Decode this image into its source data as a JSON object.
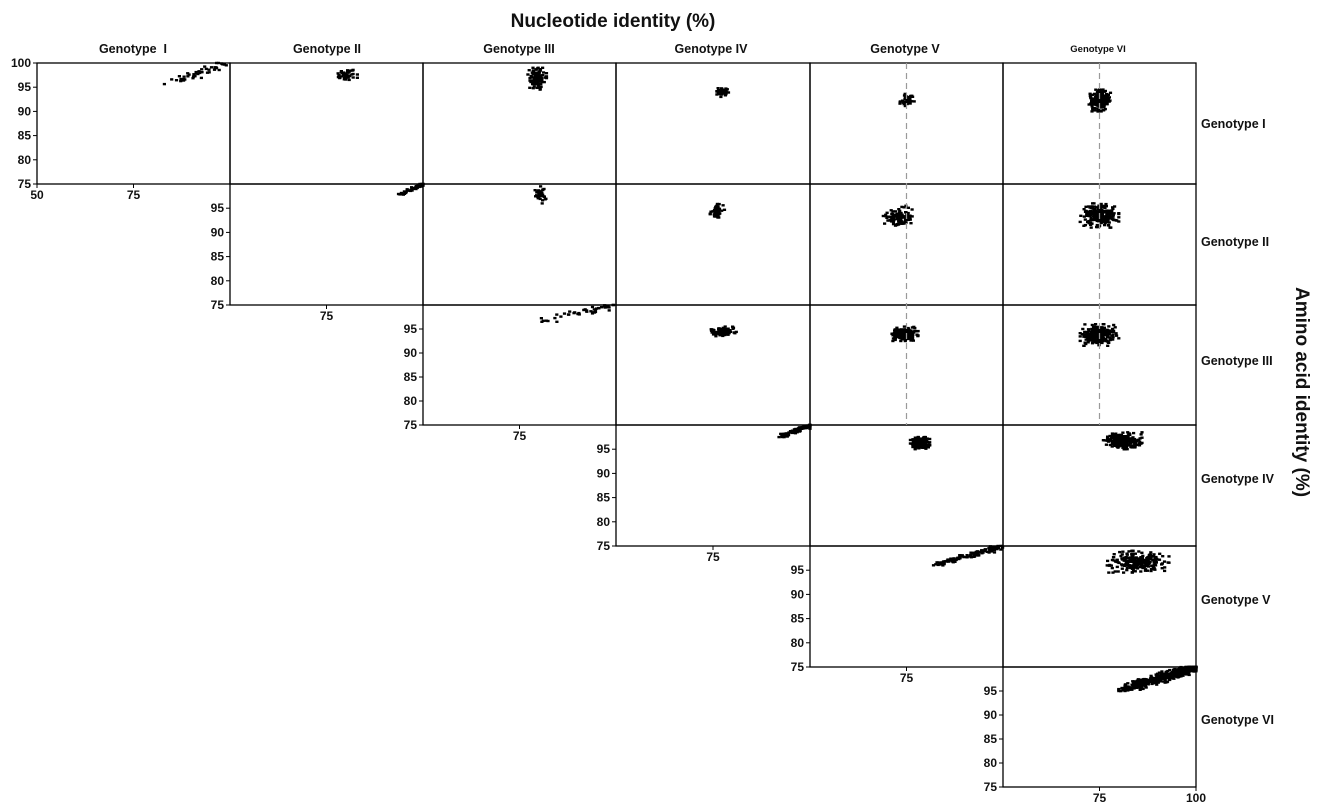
{
  "title": "Nucleotide identity (%)",
  "side_title": "Amino acid identity (%)",
  "chart_data": {
    "type": "scatter",
    "title": "Nucleotide identity (%)",
    "xlabel": "Nucleotide identity (%)",
    "ylabel": "Amino acid identity (%)",
    "genotypes": [
      "Genotype  I",
      "Genotype II",
      "Genotype III",
      "Genotype IV",
      "Genotype V",
      "Genotype VI"
    ],
    "row_labels": [
      "Genotype I",
      "Genotype II",
      "Genotype III",
      "Genotype IV",
      "Genotype V",
      "Genotype VI"
    ],
    "xlim": [
      50,
      100
    ],
    "ylim": [
      75,
      100
    ],
    "x_ticks": [
      50,
      75,
      100
    ],
    "y_ticks": [
      75,
      80,
      85,
      90,
      95,
      100
    ],
    "x_tick_labels_first_panel": [
      "50",
      "75"
    ],
    "x_tick_labels_diagonal": [
      "75"
    ],
    "x_tick_labels_last_panel": [
      "75",
      "100"
    ],
    "y_tick_labels_first_panel": [
      "75",
      "80",
      "85",
      "90",
      "95",
      "100"
    ],
    "y_tick_labels_diagonal": [
      "75",
      "80",
      "85",
      "90",
      "95"
    ],
    "reference_line_x": 75,
    "grid": false,
    "panels": [
      {
        "row": 0,
        "col": 0,
        "pairs": "I vs I",
        "x_range": [
          83,
          100
        ],
        "y_range": [
          95.5,
          100
        ],
        "density": "sparse"
      },
      {
        "row": 0,
        "col": 1,
        "pairs": "I vs II",
        "x_range": [
          78,
          83
        ],
        "y_range": [
          96,
          99
        ],
        "density": "sparse"
      },
      {
        "row": 0,
        "col": 2,
        "pairs": "I vs III",
        "x_range": [
          77,
          82
        ],
        "y_range": [
          94.5,
          99
        ],
        "density": "medium"
      },
      {
        "row": 0,
        "col": 3,
        "pairs": "I vs IV",
        "x_range": [
          76,
          79
        ],
        "y_range": [
          93,
          95
        ],
        "density": "sparse"
      },
      {
        "row": 0,
        "col": 4,
        "pairs": "I vs V",
        "x_range": [
          73,
          77
        ],
        "y_range": [
          91,
          94
        ],
        "density": "sparse"
      },
      {
        "row": 0,
        "col": 5,
        "pairs": "I vs VI",
        "x_range": [
          72,
          78
        ],
        "y_range": [
          90,
          94.5
        ],
        "density": "dense"
      },
      {
        "row": 1,
        "col": 1,
        "pairs": "II vs II",
        "x_range": [
          93,
          100
        ],
        "y_range": [
          97.5,
          100
        ],
        "density": "sparse"
      },
      {
        "row": 1,
        "col": 2,
        "pairs": "II vs III",
        "x_range": [
          79,
          82
        ],
        "y_range": [
          96,
          99.5
        ],
        "density": "sparse"
      },
      {
        "row": 1,
        "col": 3,
        "pairs": "II vs IV",
        "x_range": [
          74,
          78
        ],
        "y_range": [
          92.5,
          97
        ],
        "density": "sparse"
      },
      {
        "row": 1,
        "col": 4,
        "pairs": "II vs V",
        "x_range": [
          69,
          78
        ],
        "y_range": [
          91,
          95.5
        ],
        "density": "medium"
      },
      {
        "row": 1,
        "col": 5,
        "pairs": "II vs VI",
        "x_range": [
          70,
          80
        ],
        "y_range": [
          91,
          96
        ],
        "density": "dense"
      },
      {
        "row": 2,
        "col": 2,
        "pairs": "III vs III",
        "x_range": [
          80,
          100
        ],
        "y_range": [
          96.5,
          100
        ],
        "density": "sparse"
      },
      {
        "row": 2,
        "col": 3,
        "pairs": "III vs IV",
        "x_range": [
          74,
          81
        ],
        "y_range": [
          93.5,
          95.5
        ],
        "density": "medium"
      },
      {
        "row": 2,
        "col": 4,
        "pairs": "III vs V",
        "x_range": [
          71,
          78
        ],
        "y_range": [
          92.5,
          95.5
        ],
        "density": "dense"
      },
      {
        "row": 2,
        "col": 5,
        "pairs": "III vs VI",
        "x_range": [
          70,
          80
        ],
        "y_range": [
          91.5,
          96
        ],
        "density": "dense"
      },
      {
        "row": 3,
        "col": 3,
        "pairs": "IV vs IV",
        "x_range": [
          92,
          100
        ],
        "y_range": [
          97.5,
          100
        ],
        "density": "medium"
      },
      {
        "row": 3,
        "col": 4,
        "pairs": "IV vs V",
        "x_range": [
          76,
          81
        ],
        "y_range": [
          95,
          97.5
        ],
        "density": "dense"
      },
      {
        "row": 3,
        "col": 5,
        "pairs": "IV vs VI",
        "x_range": [
          76,
          86
        ],
        "y_range": [
          95,
          98.5
        ],
        "density": "dense"
      },
      {
        "row": 4,
        "col": 4,
        "pairs": "V vs V",
        "x_range": [
          82,
          100
        ],
        "y_range": [
          96,
          100
        ],
        "density": "medium"
      },
      {
        "row": 4,
        "col": 5,
        "pairs": "V vs VI",
        "x_range": [
          77,
          93
        ],
        "y_range": [
          94.5,
          99
        ],
        "density": "dense"
      },
      {
        "row": 5,
        "col": 5,
        "pairs": "VI vs VI",
        "x_range": [
          80,
          100
        ],
        "y_range": [
          95,
          100
        ],
        "density": "very dense"
      }
    ]
  }
}
